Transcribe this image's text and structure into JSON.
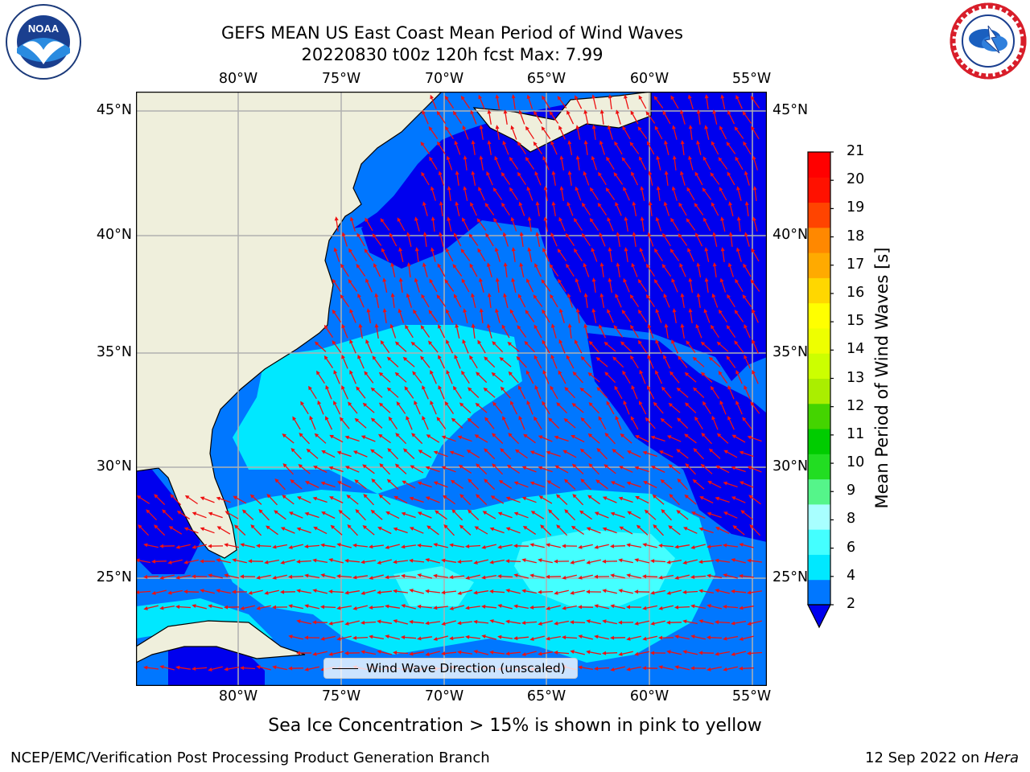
{
  "title": {
    "line1": "GEFS MEAN US East Coast Mean Period of Wind Waves",
    "line2": "20220830 t00z 120h fcst   Max: 7.99"
  },
  "map": {
    "lon_labels": [
      "80°W",
      "75°W",
      "70°W",
      "65°W",
      "60°W",
      "55°W"
    ],
    "lat_labels": [
      "45°N",
      "40°N",
      "35°N",
      "30°N",
      "25°N"
    ],
    "colors": {
      "land": "#efefdc",
      "grid": "#b0b0b0",
      "arrow": "#ee1111",
      "coast": "#000000"
    },
    "legend": {
      "label": "Wind Wave Direction (unscaled)"
    }
  },
  "colorbar": {
    "title": "Mean Period of Wind Waves [s]",
    "ticks": [
      "2",
      "4",
      "6",
      "8",
      "9",
      "10",
      "11",
      "12",
      "13",
      "14",
      "15",
      "16",
      "17",
      "18",
      "19",
      "20",
      "21"
    ],
    "colors": [
      "#0077ff",
      "#00e8ff",
      "#44ffff",
      "#a8ffff",
      "#55f58a",
      "#22dd22",
      "#00cc00",
      "#44d400",
      "#aaee00",
      "#ccff00",
      "#eeff00",
      "#ffff00",
      "#ffd700",
      "#ffaa00",
      "#ff8800",
      "#ff4400",
      "#ff1100",
      "#ff0000"
    ],
    "under_color": "#0000ee"
  },
  "caption": "Sea Ice Concentration > 15% is shown in pink to yellow",
  "footer": {
    "left": "NCEP/EMC/Verification Post Processing Product Generation Branch",
    "right_date": "12 Sep 2022 on ",
    "right_host": "Hera"
  }
}
